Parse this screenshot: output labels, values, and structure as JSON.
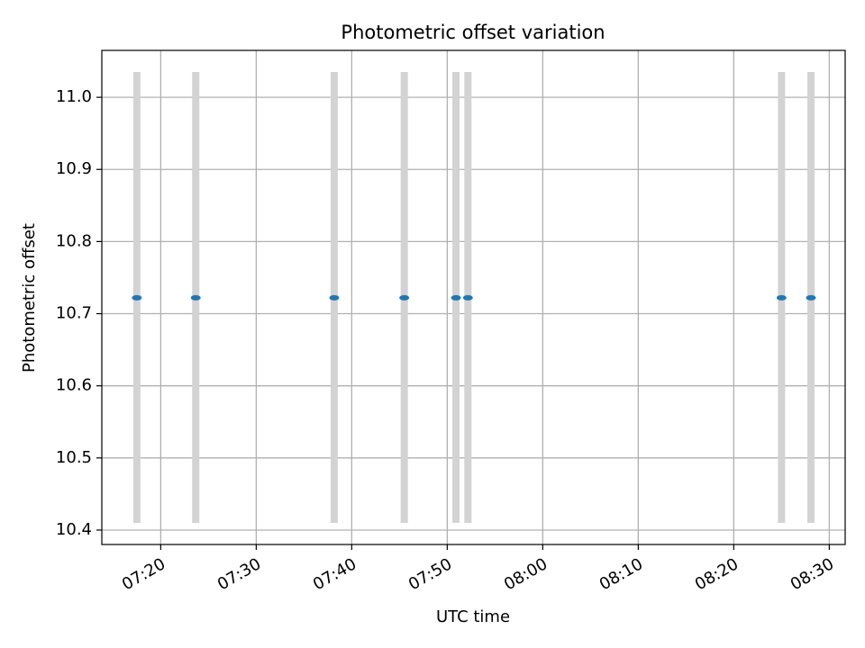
{
  "chart_data": {
    "type": "scatter",
    "title": "Photometric offset variation",
    "xlabel": "UTC time",
    "ylabel": "Photometric offset",
    "x_ticks": [
      "07:20",
      "07:30",
      "07:40",
      "07:50",
      "08:00",
      "08:10",
      "08:20",
      "08:30"
    ],
    "y_ticks": [
      "10.4",
      "10.5",
      "10.6",
      "10.7",
      "10.8",
      "10.9",
      "11.0"
    ],
    "xlim": [
      "07:13:50",
      "08:31:40"
    ],
    "ylim": [
      10.38,
      11.065
    ],
    "grid": true,
    "series": [
      {
        "marker_color": "#1f77b4",
        "errorbar_color": "#d3d3d3",
        "points": [
          {
            "x": "07:17:30",
            "y": 10.722,
            "ylow": 10.41,
            "yhigh": 11.035
          },
          {
            "x": "07:23:40",
            "y": 10.722,
            "ylow": 10.41,
            "yhigh": 11.035
          },
          {
            "x": "07:38:10",
            "y": 10.722,
            "ylow": 10.41,
            "yhigh": 11.035
          },
          {
            "x": "07:45:30",
            "y": 10.722,
            "ylow": 10.41,
            "yhigh": 11.035
          },
          {
            "x": "07:50:55",
            "y": 10.722,
            "ylow": 10.41,
            "yhigh": 11.035
          },
          {
            "x": "07:52:10",
            "y": 10.722,
            "ylow": 10.41,
            "yhigh": 11.035
          },
          {
            "x": "08:25:00",
            "y": 10.722,
            "ylow": 10.41,
            "yhigh": 11.035
          },
          {
            "x": "08:28:05",
            "y": 10.722,
            "ylow": 10.41,
            "yhigh": 11.035
          }
        ]
      }
    ]
  }
}
